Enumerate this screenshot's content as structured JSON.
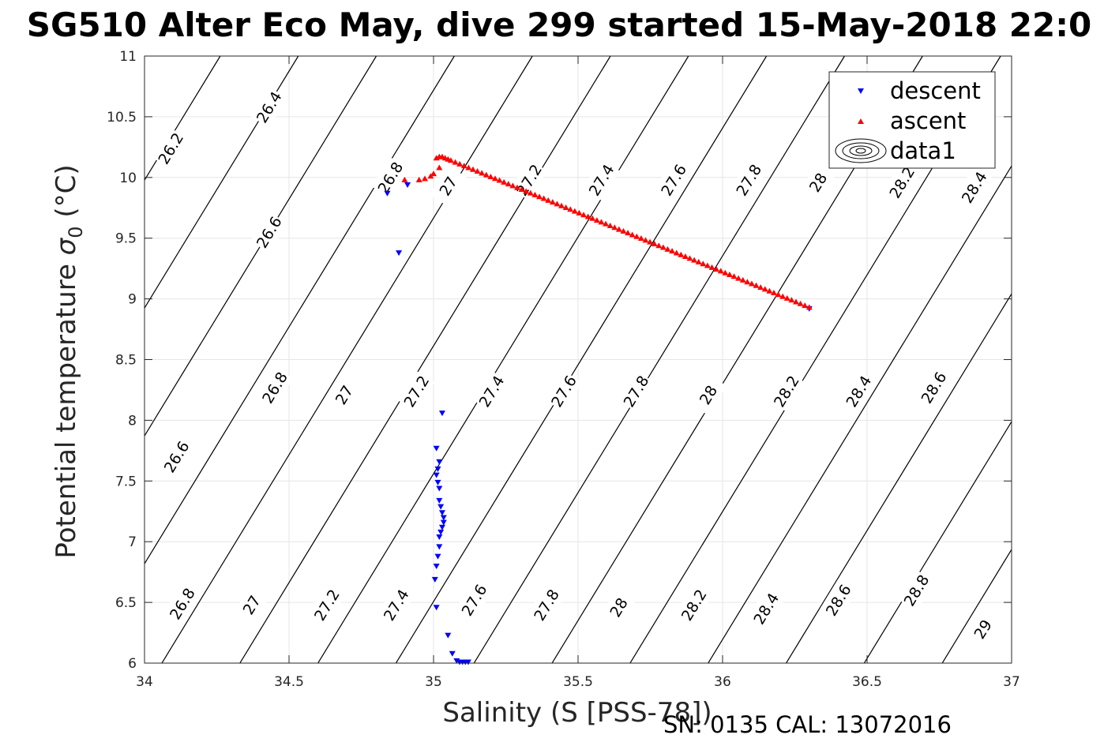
{
  "chart_data": {
    "type": "scatter",
    "title": "SG510 Alter Eco May, dive 299 started 15-May-2018 22:0",
    "xlabel": "Salinity (S [PSS-78])",
    "ylabel_main": "Potential temperature ",
    "ylabel_sigma": "σ",
    "ylabel_sub": "0",
    "ylabel_unit": " (°C)",
    "xlim": [
      34,
      37
    ],
    "ylim": [
      6,
      11
    ],
    "xticks": [
      34,
      34.5,
      35,
      35.5,
      36,
      36.5,
      37
    ],
    "xtick_labels": [
      "34",
      "34.5",
      "35",
      "35.5",
      "36",
      "36.5",
      "37"
    ],
    "yticks": [
      6,
      6.5,
      7,
      7.5,
      8,
      8.5,
      9,
      9.5,
      10,
      10.5,
      11
    ],
    "ytick_labels": [
      "6",
      "6.5",
      "7",
      "7.5",
      "8",
      "8.5",
      "9",
      "9.5",
      "10",
      "10.5",
      "11"
    ],
    "grid": true,
    "legend_position": "top-right",
    "legend": [
      "descent",
      "ascent",
      "data1"
    ],
    "footer": "SN: 0135  CAL: 13072016",
    "colors": {
      "descent": "#0000ff",
      "ascent": "#ff0000",
      "contour": "#000000"
    },
    "contour_levels": [
      "26.2",
      "26.4",
      "26.6",
      "26.8",
      "27",
      "27.2",
      "27.4",
      "27.6",
      "27.8",
      "28",
      "28.2",
      "28.4",
      "28.6",
      "28.8",
      "29"
    ],
    "contour_label_points": [
      {
        "text": "26.2",
        "x": 34.09,
        "y": 10.24
      },
      {
        "text": "26.4",
        "x": 34.43,
        "y": 10.58
      },
      {
        "text": "26.6",
        "x": 34.43,
        "y": 9.55
      },
      {
        "text": "26.8",
        "x": 34.85,
        "y": 10.0
      },
      {
        "text": "27",
        "x": 35.05,
        "y": 9.93
      },
      {
        "text": "27.2",
        "x": 35.33,
        "y": 9.98
      },
      {
        "text": "27.4",
        "x": 35.58,
        "y": 9.98
      },
      {
        "text": "27.6",
        "x": 35.83,
        "y": 9.98
      },
      {
        "text": "27.8",
        "x": 36.09,
        "y": 9.98
      },
      {
        "text": "28",
        "x": 36.33,
        "y": 9.96
      },
      {
        "text": "28.2",
        "x": 36.62,
        "y": 9.96
      },
      {
        "text": "28.4",
        "x": 36.87,
        "y": 9.92
      },
      {
        "text": "26.6",
        "x": 34.11,
        "y": 7.7
      },
      {
        "text": "26.8",
        "x": 34.45,
        "y": 8.27
      },
      {
        "text": "27",
        "x": 34.69,
        "y": 8.21
      },
      {
        "text": "27.2",
        "x": 34.94,
        "y": 8.24
      },
      {
        "text": "27.4",
        "x": 35.2,
        "y": 8.24
      },
      {
        "text": "27.6",
        "x": 35.45,
        "y": 8.24
      },
      {
        "text": "27.8",
        "x": 35.7,
        "y": 8.24
      },
      {
        "text": "28",
        "x": 35.95,
        "y": 8.21
      },
      {
        "text": "28.2",
        "x": 36.22,
        "y": 8.24
      },
      {
        "text": "28.4",
        "x": 36.47,
        "y": 8.24
      },
      {
        "text": "28.6",
        "x": 36.73,
        "y": 8.27
      },
      {
        "text": "26.8",
        "x": 34.13,
        "y": 6.49
      },
      {
        "text": "27",
        "x": 34.37,
        "y": 6.48
      },
      {
        "text": "27.2",
        "x": 34.63,
        "y": 6.48
      },
      {
        "text": "27.4",
        "x": 34.87,
        "y": 6.48
      },
      {
        "text": "27.6",
        "x": 35.14,
        "y": 6.52
      },
      {
        "text": "27.8",
        "x": 35.39,
        "y": 6.48
      },
      {
        "text": "28",
        "x": 35.64,
        "y": 6.46
      },
      {
        "text": "28.2",
        "x": 35.9,
        "y": 6.48
      },
      {
        "text": "28.4",
        "x": 36.15,
        "y": 6.45
      },
      {
        "text": "28.6",
        "x": 36.4,
        "y": 6.52
      },
      {
        "text": "28.8",
        "x": 36.67,
        "y": 6.6
      },
      {
        "text": "29",
        "x": 36.9,
        "y": 6.28
      }
    ],
    "series": [
      {
        "name": "descent",
        "marker": "triangle-down",
        "points": [
          [
            34.84,
            9.87
          ],
          [
            34.91,
            9.94
          ],
          [
            34.88,
            9.38
          ],
          [
            35.03,
            8.06
          ],
          [
            35.01,
            7.77
          ],
          [
            35.02,
            7.66
          ],
          [
            35.015,
            7.6
          ],
          [
            35.01,
            7.55
          ],
          [
            35.015,
            7.49
          ],
          [
            35.02,
            7.44
          ],
          [
            35.02,
            7.34
          ],
          [
            35.025,
            7.29
          ],
          [
            35.03,
            7.24
          ],
          [
            35.035,
            7.2
          ],
          [
            35.035,
            7.16
          ],
          [
            35.03,
            7.12
          ],
          [
            35.025,
            7.08
          ],
          [
            35.02,
            7.04
          ],
          [
            35.02,
            6.96
          ],
          [
            35.015,
            6.88
          ],
          [
            35.01,
            6.8
          ],
          [
            35.005,
            6.69
          ],
          [
            35.01,
            6.46
          ],
          [
            35.05,
            6.23
          ],
          [
            35.065,
            6.08
          ],
          [
            35.08,
            6.02
          ],
          [
            35.09,
            6.01
          ],
          [
            35.1,
            6.01
          ],
          [
            35.11,
            6.01
          ],
          [
            35.12,
            6.01
          ],
          [
            36.3,
            8.92
          ]
        ]
      },
      {
        "name": "ascent",
        "marker": "triangle-up",
        "points": [
          [
            34.9,
            9.98
          ],
          [
            34.95,
            9.98
          ],
          [
            34.97,
            9.99
          ],
          [
            34.99,
            10.01
          ],
          [
            35.0,
            10.03
          ],
          [
            35.02,
            10.08
          ],
          [
            35.01,
            10.16
          ],
          [
            35.02,
            10.17
          ],
          [
            35.03,
            10.17
          ],
          [
            35.04,
            10.16
          ],
          [
            35.05,
            10.15
          ]
        ],
        "line_segment": {
          "x_start": 35.06,
          "y_start": 10.14,
          "x_end": 36.3,
          "y_end": 8.93,
          "count": 82
        }
      }
    ]
  }
}
